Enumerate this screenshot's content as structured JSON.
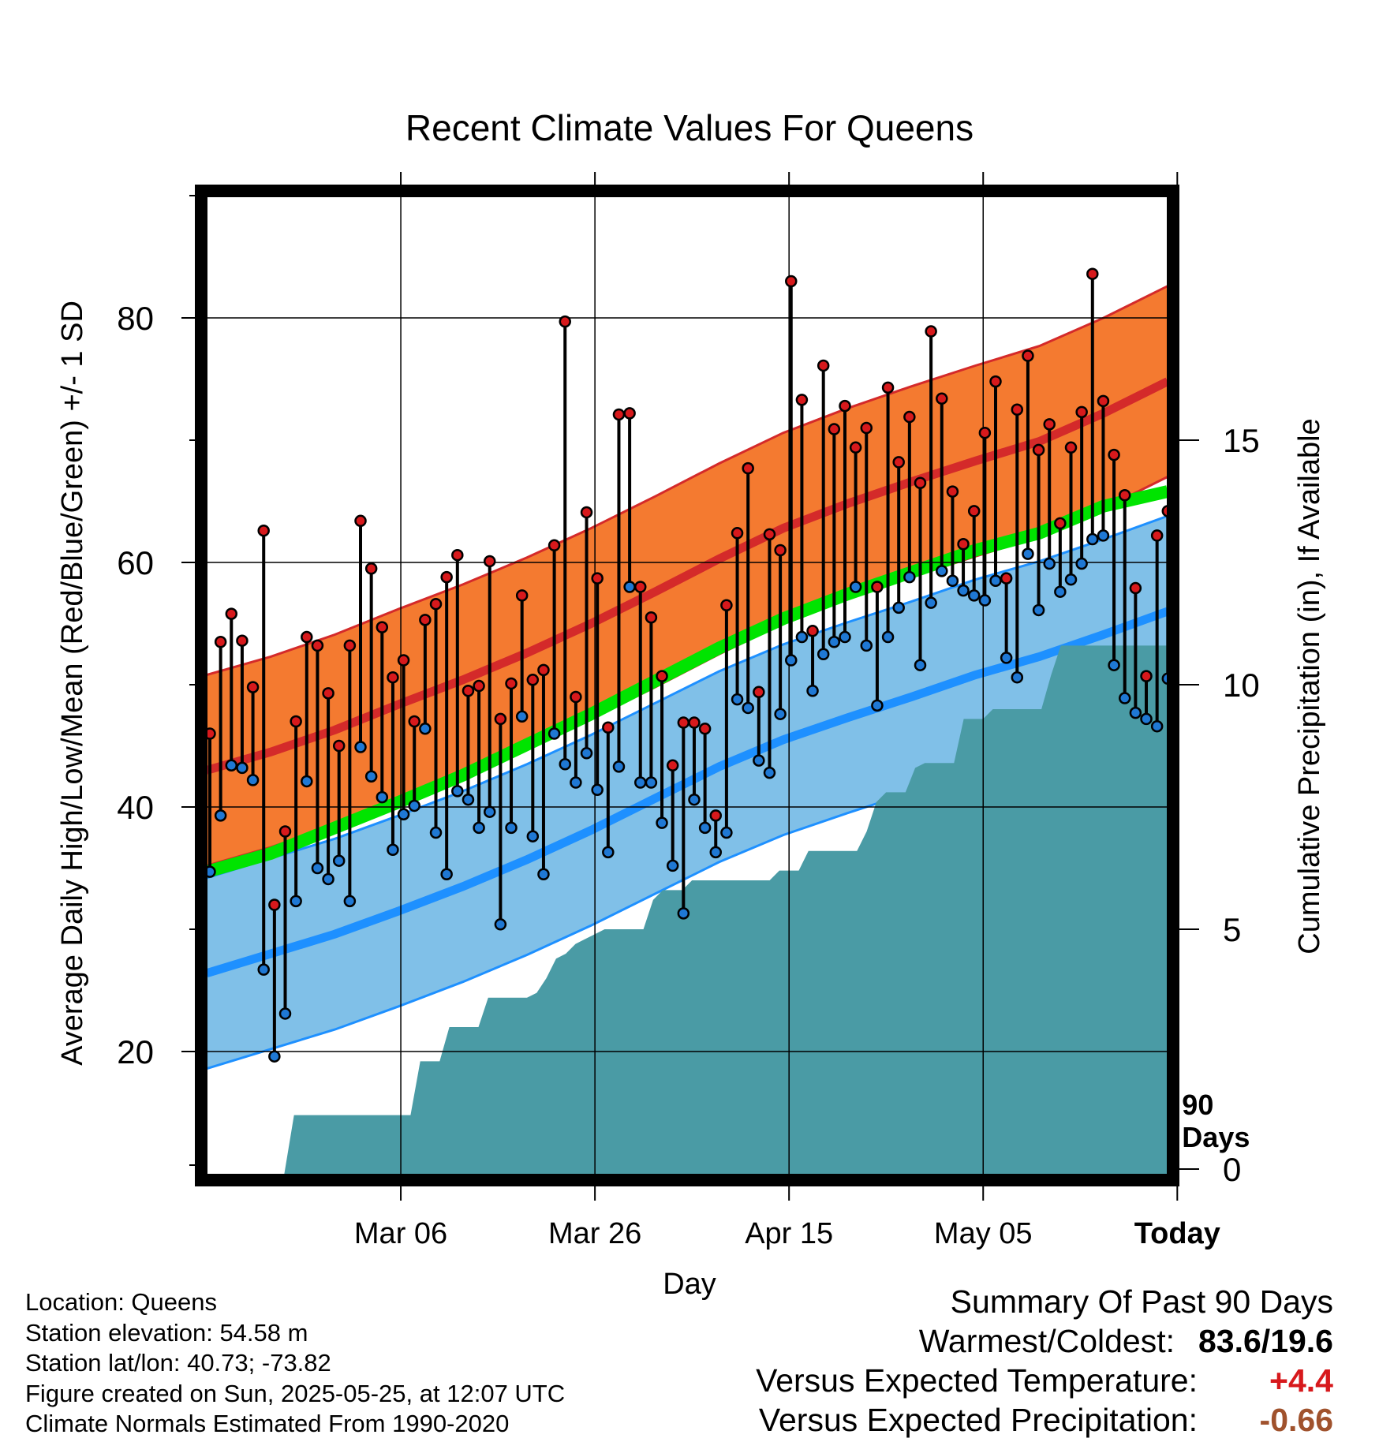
{
  "chart_data": {
    "type": "line",
    "title": "Recent Climate Values For Queens",
    "xlabel": "Day",
    "ylabel": "Average Daily High/Low/Mean (Red/Blue/Green) +/- 1 SD",
    "y2label": "Cumulative Precipitation (in), If Available",
    "ylim": [
      10,
      90
    ],
    "y2lim": [
      0,
      20
    ],
    "yticks": [
      20,
      40,
      60,
      80
    ],
    "y2ticks": [
      0,
      5,
      10,
      15
    ],
    "xlim": [
      -90,
      9
    ],
    "xticks": [
      {
        "day": -70,
        "label": "Mar 06"
      },
      {
        "day": -50,
        "label": "Mar 26"
      },
      {
        "day": -30,
        "label": "Apr 15"
      },
      {
        "day": -10,
        "label": "May 05"
      },
      {
        "day": 10,
        "label": "Today"
      }
    ],
    "today_label": "90 Days",
    "series": [
      {
        "name": "High",
        "color": "#d7191c",
        "values": [
          46.0,
          53.5,
          55.8,
          53.6,
          49.8,
          62.6,
          32.0,
          38.0,
          47.0,
          53.9,
          53.2,
          49.3,
          45.0,
          53.2,
          63.4,
          59.5,
          54.7,
          50.6,
          52.0,
          47.0,
          55.3,
          56.6,
          58.8,
          60.6,
          49.5,
          49.9,
          60.1,
          47.2,
          50.1,
          57.3,
          50.4,
          51.2,
          61.4,
          79.7,
          49.0,
          64.1,
          58.7,
          46.5,
          72.1,
          72.2,
          58.0,
          55.5,
          50.7,
          43.4,
          46.9,
          46.9,
          46.4,
          39.3,
          56.5,
          62.4,
          67.7,
          49.4,
          62.3,
          61.0,
          83.0,
          73.3,
          54.4,
          76.1,
          70.9,
          72.8,
          69.4,
          71.0,
          58.0,
          74.3,
          68.2,
          71.9,
          66.5,
          78.9,
          73.4,
          65.8,
          61.5,
          64.2,
          70.6,
          74.8,
          58.7,
          72.5,
          76.9,
          69.2,
          71.3,
          63.2,
          69.4,
          72.3,
          83.6,
          73.2,
          68.8,
          65.5,
          57.9,
          50.7,
          62.2,
          64.2
        ]
      },
      {
        "name": "Low",
        "color": "#1f78d4",
        "values": [
          34.7,
          39.3,
          43.4,
          43.2,
          42.2,
          26.7,
          19.6,
          23.1,
          32.3,
          42.1,
          35.0,
          34.1,
          35.6,
          32.3,
          44.9,
          42.5,
          40.8,
          36.5,
          39.4,
          40.1,
          46.4,
          37.9,
          34.5,
          41.3,
          40.6,
          38.3,
          39.6,
          30.4,
          38.3,
          47.4,
          37.6,
          34.5,
          46.0,
          43.5,
          42.0,
          44.4,
          41.4,
          36.3,
          43.3,
          58.0,
          42.0,
          42.0,
          38.7,
          35.2,
          31.3,
          40.6,
          38.3,
          36.3,
          37.9,
          48.8,
          48.1,
          43.8,
          42.8,
          47.6,
          52.0,
          53.9,
          49.5,
          52.5,
          53.5,
          53.9,
          58.0,
          53.2,
          48.3,
          53.9,
          56.3,
          58.8,
          51.6,
          56.7,
          59.3,
          58.5,
          57.7,
          57.3,
          56.9,
          58.5,
          52.2,
          50.6,
          60.7,
          56.1,
          59.9,
          57.6,
          58.6,
          59.9,
          61.9,
          62.2,
          51.6,
          48.9,
          47.7,
          47.2,
          46.6,
          50.5
        ]
      },
      {
        "name": "Mean normal",
        "color": "#00e400",
        "values": [
          34.7,
          36.2,
          38.3,
          40.4,
          42.6,
          45.1,
          47.6,
          50.3,
          53.0,
          55.4,
          57.4,
          59.2,
          61.0,
          62.4,
          64.6,
          65.8
        ]
      },
      {
        "name": "High normal",
        "color": "#d42a2a",
        "values": [
          43.0,
          44.5,
          46.3,
          48.4,
          50.4,
          52.6,
          55.0,
          57.6,
          60.3,
          62.8,
          64.8,
          66.6,
          68.3,
          69.9,
          72.2,
          74.8
        ]
      },
      {
        "name": "Low normal",
        "color": "#1e90ff",
        "values": [
          26.4,
          28.0,
          29.6,
          31.5,
          33.5,
          35.7,
          38.1,
          40.7,
          43.3,
          45.5,
          47.3,
          49.0,
          50.8,
          52.3,
          54.1,
          56.0
        ]
      },
      {
        "name": "Precipitation",
        "color": "#4a9ba5",
        "values": [
          0,
          0,
          0,
          0,
          0,
          0,
          0,
          0,
          0,
          1.2,
          1.2,
          1.2,
          1.2,
          1.2,
          1.2,
          1.2,
          1.2,
          1.2,
          1.2,
          1.2,
          1.2,
          1.2,
          2.3,
          2.3,
          2.3,
          3.0,
          3.0,
          3.0,
          3.0,
          3.6,
          3.6,
          3.6,
          3.6,
          3.6,
          3.7,
          4.0,
          4.4,
          4.5,
          4.7,
          4.8,
          4.9,
          5.0,
          5.0,
          5.0,
          5.0,
          5.0,
          5.6,
          5.8,
          5.8,
          5.8,
          6.0,
          6.0,
          6.0,
          6.0,
          6.0,
          6.0,
          6.0,
          6.0,
          6.0,
          6.2,
          6.2,
          6.2,
          6.6,
          6.6,
          6.6,
          6.6,
          6.6,
          6.6,
          7.0,
          7.6,
          7.8,
          7.8,
          7.8,
          8.3,
          8.4,
          8.4,
          8.4,
          8.4,
          9.3,
          9.3,
          9.3,
          9.5,
          9.5,
          9.5,
          9.5,
          9.5,
          9.5,
          10.2,
          10.8,
          10.8,
          10.8,
          10.8,
          10.8,
          10.8,
          10.8,
          10.8,
          10.8,
          10.8,
          10.8,
          10.8
        ]
      }
    ]
  },
  "footer": {
    "location": "Location: Queens",
    "elevation": "Station elevation: 54.58 m",
    "latlon": "Station lat/lon: 40.73; -73.82",
    "created": "Figure created on Sun, 2025-05-25, at 12:07 UTC",
    "normals": "Climate Normals Estimated From 1990-2020"
  },
  "summary": {
    "title": "Summary Of Past 90 Days",
    "warm_cold_label": "Warmest/Coldest:",
    "warm_cold_value": "83.6/19.6",
    "temp_label": "Versus Expected Temperature:",
    "temp_value": "+4.4",
    "temp_color": "#d7191c",
    "precip_label": "Versus Expected Precipitation:",
    "precip_value": "-0.66",
    "precip_color": "#a0522d"
  },
  "colors": {
    "high_band": "#f47a30",
    "high_band_edge": "#d42a2a",
    "low_band": "#80c0e8",
    "low_band_edge": "#1e90ff",
    "precip": "#4a9ba5"
  }
}
